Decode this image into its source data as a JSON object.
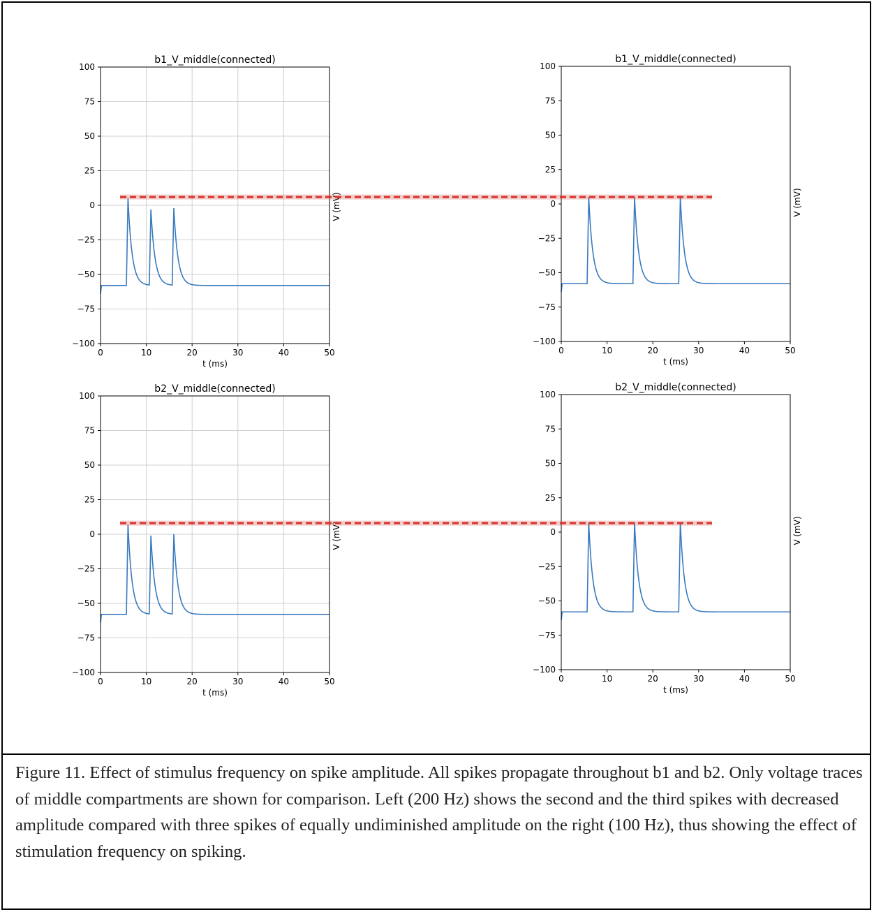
{
  "figure": {
    "caption": "Figure 11. Effect of stimulus frequency on spike amplitude. All spikes propagate throughout b1 and b2. Only voltage traces of middle compartments are shown for comparison. Left (200 Hz) shows the second and the third spikes with decreased amplitude compared with three spikes of equally undiminished amplitude on the right (100 Hz), thus showing the effect of stimulation frequency on spiking.",
    "colors": {
      "trace": "#3a7abf",
      "reference_line": "#d9332b",
      "grid": "#d0d0d0"
    }
  },
  "chart_data": [
    {
      "type": "line",
      "title": "b1_V_middle(connected)",
      "xlabel": "t (ms)",
      "ylabel": "",
      "xlim": [
        0,
        50
      ],
      "ylim": [
        -100,
        100
      ],
      "xticks": [
        0,
        10,
        20,
        30,
        40,
        50
      ],
      "yticks": [
        -100,
        -75,
        -50,
        -25,
        0,
        25,
        50,
        75,
        100
      ],
      "grid": true,
      "resting_mV": -58,
      "spikes": [
        {
          "t": 6,
          "peak": 5
        },
        {
          "t": 11,
          "peak": -3
        },
        {
          "t": 16,
          "peak": -2
        }
      ]
    },
    {
      "type": "line",
      "title": "b1_V_middle(connected)",
      "xlabel": "t (ms)",
      "ylabel": "V (mV)",
      "xlim": [
        0,
        50
      ],
      "ylim": [
        -100,
        100
      ],
      "xticks": [
        0,
        10,
        20,
        30,
        40,
        50
      ],
      "yticks": [
        -100,
        -75,
        -50,
        -25,
        0,
        25,
        50,
        75,
        100
      ],
      "grid": false,
      "resting_mV": -58,
      "spikes": [
        {
          "t": 6,
          "peak": 5
        },
        {
          "t": 16,
          "peak": 5
        },
        {
          "t": 26,
          "peak": 5
        }
      ]
    },
    {
      "type": "line",
      "title": "b2_V_middle(connected)",
      "xlabel": "t (ms)",
      "ylabel": "",
      "xlim": [
        0,
        50
      ],
      "ylim": [
        -100,
        100
      ],
      "xticks": [
        0,
        10,
        20,
        30,
        40,
        50
      ],
      "yticks": [
        -100,
        -75,
        -50,
        -25,
        0,
        25,
        50,
        75,
        100
      ],
      "grid": true,
      "resting_mV": -58,
      "spikes": [
        {
          "t": 6,
          "peak": 7
        },
        {
          "t": 11,
          "peak": -1
        },
        {
          "t": 16,
          "peak": 0
        }
      ]
    },
    {
      "type": "line",
      "title": "b2_V_middle(connected)",
      "xlabel": "t (ms)",
      "ylabel": "V (mV)",
      "xlim": [
        0,
        50
      ],
      "ylim": [
        -100,
        100
      ],
      "xticks": [
        0,
        10,
        20,
        30,
        40,
        50
      ],
      "yticks": [
        -100,
        -75,
        -50,
        -25,
        0,
        25,
        50,
        75,
        100
      ],
      "grid": false,
      "resting_mV": -58,
      "spikes": [
        {
          "t": 6,
          "peak": 7
        },
        {
          "t": 16,
          "peak": 7
        },
        {
          "t": 26,
          "peak": 7
        }
      ]
    }
  ],
  "reference_lines": [
    {
      "name": "b1-amplitude-reference",
      "y_mV": 6
    },
    {
      "name": "b2-amplitude-reference",
      "y_mV": 8
    }
  ]
}
